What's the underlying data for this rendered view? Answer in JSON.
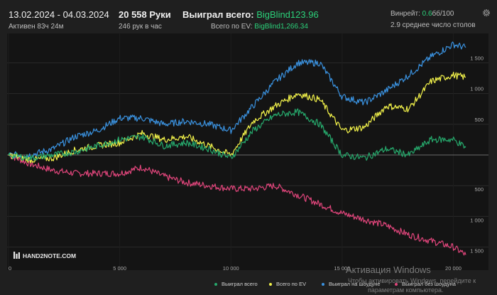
{
  "header": {
    "date_range": "13.02.2024 - 04.03.2024",
    "active_time": "Активен 83ч 24м",
    "hands": "20 558 Руки",
    "hands_rate": "246 рук в час",
    "won_total_label": "Выиграл всего:",
    "won_total_value": "BigBlind123.96",
    "ev_total_label": "Всего по EV:",
    "ev_total_value": "BigBlind1,266.34",
    "winrate_label": "Винрейт:",
    "winrate_value": "0.6",
    "winrate_unit": "бб/100",
    "avg_tables": "2.9 среднее число столов"
  },
  "icons": {
    "settings": "gear-icon"
  },
  "colors": {
    "background": "#1f1f1f",
    "plot_background": "#141414",
    "accent_green": "#2bd17a",
    "series_won": "#26a96c",
    "series_ev": "#f2f24a",
    "series_showdown": "#3a92e0",
    "series_nonshowdown": "#e0457b"
  },
  "logo": {
    "text": "HAND2NOTE.COM"
  },
  "chart_data": {
    "type": "line",
    "x_ticks": [
      "0",
      "5 000",
      "10 000",
      "15 000",
      "20 000"
    ],
    "y_ticks_positive": [
      "500",
      "1 000",
      "1 500"
    ],
    "y_ticks_negative": [
      "500",
      "1 000",
      "1 500"
    ],
    "xlim": [
      0,
      20558
    ],
    "ylim": [
      -1700,
      1900
    ],
    "grid": true,
    "legend_position": "bottom",
    "x": [
      0,
      1000,
      2000,
      3000,
      4000,
      5000,
      6000,
      7000,
      8000,
      9000,
      10000,
      11000,
      12000,
      13000,
      14000,
      15000,
      16000,
      17000,
      18000,
      19000,
      20000,
      20558
    ],
    "series": [
      {
        "name": "Выиграл всего",
        "color": "#26a96c",
        "values": [
          0,
          -50,
          0,
          50,
          150,
          250,
          300,
          150,
          200,
          100,
          -50,
          400,
          650,
          700,
          500,
          0,
          -50,
          100,
          0,
          250,
          250,
          124
        ]
      },
      {
        "name": "Всего по EV",
        "color": "#f2f24a",
        "values": [
          0,
          -80,
          -50,
          80,
          150,
          200,
          350,
          250,
          300,
          150,
          0,
          550,
          800,
          1000,
          900,
          400,
          450,
          800,
          750,
          1200,
          1300,
          1266
        ]
      },
      {
        "name": "Выиграл на шоудуне",
        "color": "#3a92e0",
        "values": [
          0,
          0,
          100,
          300,
          400,
          600,
          600,
          500,
          550,
          500,
          400,
          800,
          1200,
          1500,
          1500,
          950,
          850,
          1050,
          1300,
          1600,
          1800,
          1750
        ]
      },
      {
        "name": "Выиграл без шоудуна",
        "color": "#e0457b",
        "values": [
          0,
          -150,
          -250,
          -300,
          -300,
          -300,
          -200,
          -350,
          -450,
          -500,
          -550,
          -550,
          -500,
          -650,
          -800,
          -950,
          -1050,
          -1150,
          -1300,
          -1400,
          -1500,
          -1626
        ]
      }
    ]
  },
  "legend": [
    {
      "label": "Выиграл всего",
      "color": "#26a96c"
    },
    {
      "label": "Всего по EV",
      "color": "#f2f24a"
    },
    {
      "label": "Выиграл на шоудуне",
      "color": "#3a92e0"
    },
    {
      "label": "Выиграл без шоудуна",
      "color": "#e0457b"
    }
  ],
  "watermark": {
    "title": "Активация Windows",
    "line1": "Чтобы активировать Windows, перейдите к",
    "line2": "параметрам компьютера."
  }
}
